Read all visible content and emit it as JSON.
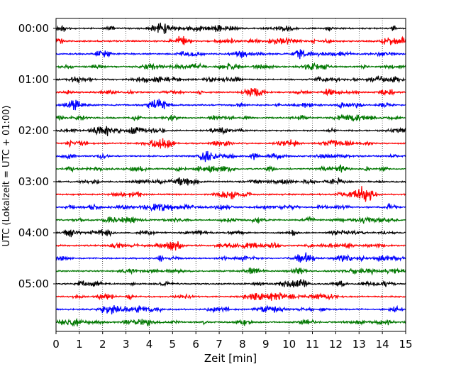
{
  "chart_data": {
    "type": "line",
    "xlabel": "Zeit  [min]",
    "ylabel": "UTC (Lokalzeit = UTC + 01:00)",
    "xlim": [
      0,
      15
    ],
    "x_ticks": [
      0,
      1,
      2,
      3,
      4,
      5,
      6,
      7,
      8,
      9,
      10,
      11,
      12,
      13,
      14,
      15
    ],
    "y_ticks": [
      "00:00",
      "01:00",
      "02:00",
      "03:00",
      "04:00",
      "05:00"
    ],
    "traces_per_hour": 4,
    "trace_count": 24,
    "trace_minutes": 15,
    "trace_colors": [
      "#000000",
      "#ff0000",
      "#0000ff",
      "#007700"
    ],
    "grid": "vertical-dotted"
  }
}
